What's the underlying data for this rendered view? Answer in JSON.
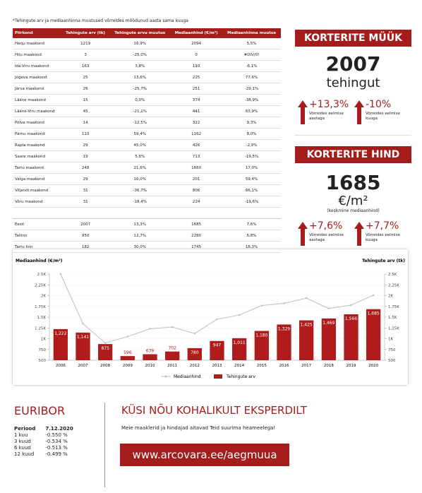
{
  "note": "*Tehingute arv ja mediaanhinna muutused võrreldes möödunud aasta sama kuuga",
  "table": {
    "header": [
      "Piirkond",
      "Tehingute arv (tk)",
      "Tehingute arvu muutus",
      "Mediaanhind (€/m²)",
      "Mediaanhinna muutus"
    ],
    "rows": [
      [
        "Harju maakond",
        "1219",
        "16,9%",
        "2094",
        "5,5%"
      ],
      [
        "Hiiu maakond",
        "3",
        "-25,0%",
        "0",
        "#DIV/0!"
      ],
      [
        "Ida-Viru maakond",
        "163",
        "3,8%",
        "193",
        "-6,1%"
      ],
      [
        "Jõgeva maakond",
        "25",
        "13,6%",
        "225",
        "77,6%"
      ],
      [
        "Järva maakond",
        "26",
        "-25,7%",
        "251",
        "-29,1%"
      ],
      [
        "Lääne maakond",
        "15",
        "0,0%",
        "374",
        "-38,9%"
      ],
      [
        "Lääne-Viru maakond",
        "45",
        "-21,1%",
        "441",
        "63,9%"
      ],
      [
        "Põlva maakond",
        "14",
        "-12,5%",
        "322",
        "9,3%"
      ],
      [
        "Pärnu maakond",
        "110",
        "59,4%",
        "1162",
        "8,0%"
      ],
      [
        "Rapla maakond",
        "29",
        "45,0%",
        "426",
        "-2,9%"
      ],
      [
        "Saare maakond",
        "19",
        "5,6%",
        "713",
        "-19,5%"
      ],
      [
        "Tartu maakond",
        "248",
        "21,6%",
        "1660",
        "17,0%"
      ],
      [
        "Valga maakond",
        "29",
        "16,0%",
        "201",
        "59,4%"
      ],
      [
        "Viljandi maakond",
        "31",
        "-36,7%",
        "806",
        "66,1%"
      ],
      [
        "Võru maakond",
        "31",
        "-18,4%",
        "224",
        "-19,6%"
      ]
    ],
    "summary_rows": [
      [
        "Eesti",
        "2007",
        "13,3%",
        "1685",
        "7,6%"
      ],
      [
        "Tallinn",
        "950",
        "12,7%",
        "2280",
        "6,8%"
      ],
      [
        "Tartu linn",
        "182",
        "30,0%",
        "1745",
        "18,3%"
      ]
    ]
  },
  "sales_panel": {
    "title": "KORTERITE MÜÜK",
    "value": "2007",
    "unit": "tehingut",
    "changes": [
      {
        "value": "+13,3%",
        "label": "Võrreldes eelmise aastaga"
      },
      {
        "value": "-10%",
        "label": "Võrreldes eelmise kuuga"
      }
    ]
  },
  "price_panel": {
    "title": "KORTERITE HIND",
    "value": "1685",
    "unit": "€/m²",
    "subtitle": "(keskmine mediaanhind)",
    "changes": [
      {
        "value": "+7,6%",
        "label": "Võrreldes eelmise aastaga"
      },
      {
        "value": "+7,7%",
        "label": "Võrreldes eelmise kuuga"
      }
    ]
  },
  "chart_data": {
    "type": "bar-line",
    "y_label": "Mediaanhind (€/m²)",
    "y2_label": "Tehingute arv (tk)",
    "categories": [
      "2006",
      "2007",
      "2008",
      "2009",
      "2010",
      "2011",
      "2012",
      "2013",
      "2014",
      "2015",
      "2016",
      "2017",
      "2018",
      "2019",
      "2020"
    ],
    "series": [
      {
        "name": "Mediaanhind",
        "type": "line",
        "axis": "y2",
        "color": "#bdbdbd",
        "values": [
          2500,
          1350,
          900,
          1050,
          1230,
          1270,
          1120,
          1450,
          1550,
          1770,
          1820,
          1940,
          1700,
          1780,
          2007
        ]
      },
      {
        "name": "Tehingute arv",
        "type": "bar",
        "color": "#b01c1c",
        "values": [
          1222,
          1141,
          875,
          596,
          639,
          702,
          780,
          947,
          1011,
          1180,
          1329,
          1425,
          1469,
          1566,
          1685
        ],
        "value_labels": [
          "1,222",
          "1,141",
          "875",
          "596",
          "639",
          "702",
          "780",
          "947",
          "1,011",
          "1,180",
          "1,329",
          "1,425",
          "1,469",
          "1,566",
          "1,685"
        ]
      }
    ],
    "ylim": [
      500,
      2500
    ],
    "yticks": [
      500,
      750,
      {
        "value": 1000,
        "label": "1K"
      },
      {
        "value": 1250,
        "label": "1.25K"
      },
      {
        "value": 1500,
        "label": "1.5K"
      },
      {
        "value": 1750,
        "label": "1.75K"
      },
      {
        "value": 2000,
        "label": "2K"
      },
      {
        "value": 2250,
        "label": "2.25K"
      },
      {
        "value": 2500,
        "label": "2.5K"
      }
    ],
    "y2lim": [
      500,
      2500
    ],
    "y2ticks": [
      500,
      750,
      {
        "value": 1000,
        "label": "1K"
      },
      {
        "value": 1250,
        "label": "1.25K"
      },
      {
        "value": 1500,
        "label": "1.5K"
      },
      {
        "value": 1750,
        "label": "1.75K"
      },
      {
        "value": 2000,
        "label": "2K"
      },
      {
        "value": 2250,
        "label": "2.25K"
      },
      {
        "value": 2500,
        "label": "2.5K"
      }
    ],
    "legend": "bottom"
  },
  "euribor": {
    "title": "EURIBOR",
    "header": [
      "Periood",
      "7.12.2020"
    ],
    "rows": [
      [
        "1 kuu",
        "-0.550 %"
      ],
      [
        "3 kuud",
        "-0.534 %"
      ],
      [
        "6 kuud",
        "-0.513 %"
      ],
      [
        "12 kuud",
        "-0.499 %"
      ]
    ]
  },
  "contact": {
    "title": "KÜSI NÕU KOHALIKULT EKSPERDILT",
    "text": "Meie maaklerid ja hindajad aitavad Teid suurima heameelega!",
    "link": "www.arcovara.ee/aegmuua"
  }
}
